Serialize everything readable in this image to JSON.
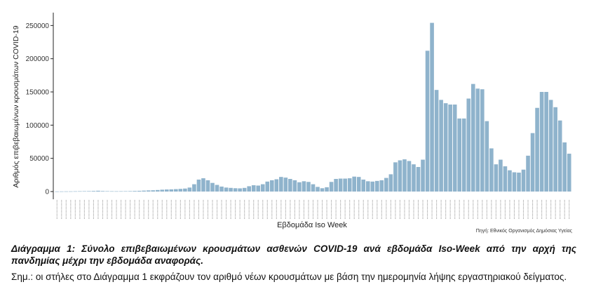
{
  "chart_data": {
    "type": "bar",
    "ylabel": "Αριθμός επιβεβαιωμένων κρουσμάτων COVID-19",
    "xlabel": "Εβδομάδα Iso Week",
    "ylim": [
      0,
      262000
    ],
    "yticks": [
      0,
      50000,
      100000,
      150000,
      200000,
      250000
    ],
    "ytick_labels": [
      "0",
      "50000",
      "100000",
      "150000",
      "200000",
      "250000"
    ],
    "bar_color": "#8fb3cc",
    "grid": false,
    "values": [
      150,
      200,
      250,
      300,
      400,
      500,
      600,
      700,
      900,
      1200,
      800,
      600,
      500,
      450,
      500,
      550,
      700,
      900,
      1100,
      1400,
      1700,
      1900,
      2300,
      2800,
      3100,
      3300,
      3600,
      4000,
      4500,
      6000,
      11000,
      18000,
      20000,
      17000,
      13000,
      10000,
      7500,
      6000,
      5500,
      5000,
      4800,
      5500,
      8000,
      9500,
      9000,
      11000,
      15000,
      17000,
      18500,
      22000,
      21000,
      19000,
      17000,
      14000,
      15500,
      14500,
      11000,
      7000,
      5000,
      6500,
      14500,
      19000,
      19500,
      19500,
      20000,
      22500,
      22000,
      18000,
      15500,
      15000,
      16000,
      17000,
      20500,
      26000,
      44000,
      47000,
      48500,
      46000,
      41000,
      37000,
      48000,
      212000,
      254000,
      153000,
      138000,
      133000,
      131000,
      131000,
      110000,
      110000,
      140000,
      162000,
      155000,
      154000,
      106000,
      65000,
      41000,
      48000,
      38000,
      32000,
      29000,
      28500,
      33000,
      54000,
      88000,
      126000,
      150000,
      150000,
      138000,
      127000,
      107000,
      74000,
      57000
    ],
    "source": "Πηγή: Εθνικός Οργανισμός Δημόσιας Υγείας"
  },
  "caption": "Διάγραμμα 1: Σύνολο επιβεβαιωμένων κρουσμάτων ασθενών COVID-19 ανά εβδομάδα Iso-Week από την αρχή της πανδημίας μέχρι την εβδομάδα αναφοράς.",
  "note": "Σημ.: οι στήλες στο Διάγραμμα 1 εκφράζουν τον αριθμό νέων κρουσμάτων με βάση την ημερομηνία λήψης εργαστηριακού δείγματος."
}
